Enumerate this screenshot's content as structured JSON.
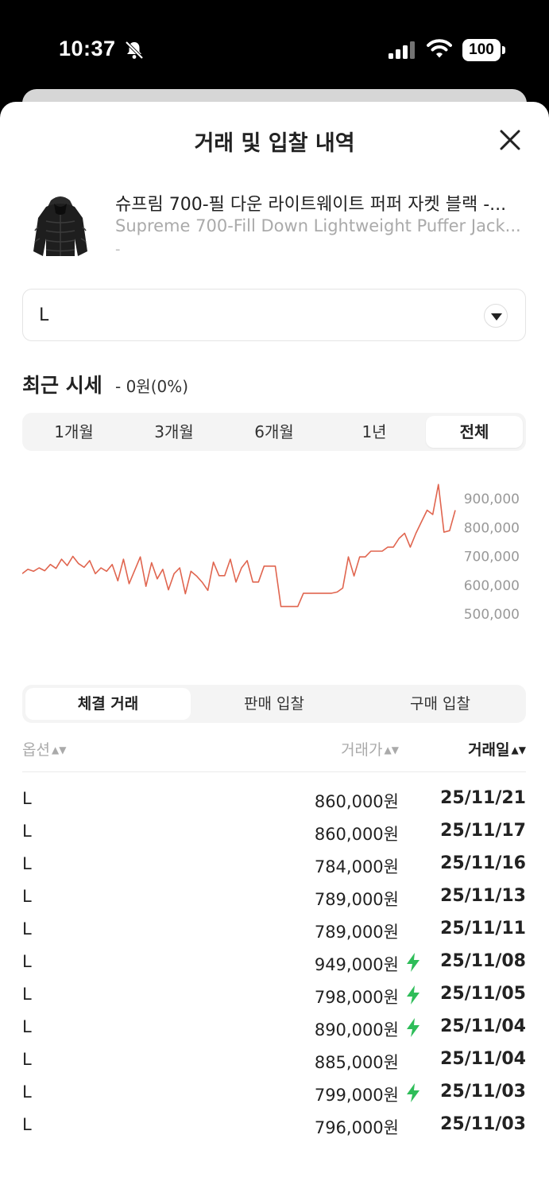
{
  "status": {
    "time": "10:37",
    "battery": "100"
  },
  "sheet": {
    "title": "거래 및 입찰 내역"
  },
  "product": {
    "name_ko": "슈프림 700-필 다운 라이트웨이트 퍼퍼 자켓 블랙 -...",
    "name_en": "Supreme 700-Fill Down Lightweight Puffer Jack...",
    "sub": "-"
  },
  "size_select": {
    "value": "L"
  },
  "price_section": {
    "heading": "최근 시세",
    "change": "- 0원(0%)"
  },
  "period_tabs": [
    {
      "label": "1개월"
    },
    {
      "label": "3개월"
    },
    {
      "label": "6개월"
    },
    {
      "label": "1년"
    },
    {
      "label": "전체",
      "active": true
    }
  ],
  "chart_data": {
    "type": "line",
    "color": "#e0654f",
    "yaxis_ticks": [
      "900,000",
      "800,000",
      "700,000",
      "600,000",
      "500,000"
    ],
    "ylim": [
      500000,
      900000
    ],
    "series": [
      {
        "values": [
          640000,
          655000,
          648000,
          660000,
          650000,
          672000,
          658000,
          690000,
          668000,
          700000,
          675000,
          662000,
          685000,
          640000,
          660000,
          648000,
          672000,
          615000,
          690000,
          605000,
          652000,
          698000,
          596000,
          678000,
          622000,
          655000,
          584000,
          640000,
          660000,
          570000,
          648000,
          632000,
          610000,
          582000,
          680000,
          633000,
          633000,
          690000,
          611000,
          660000,
          685000,
          611000,
          611000,
          666000,
          666000,
          666000,
          526000,
          526000,
          526000,
          526000,
          572000,
          572000,
          572000,
          572000,
          572000,
          572000,
          576000,
          590000,
          698000,
          632000,
          698000,
          698000,
          718000,
          718000,
          718000,
          732000,
          732000,
          762000,
          780000,
          732000,
          780000,
          820000,
          860000,
          845000,
          949000,
          784000,
          789000,
          860000
        ]
      }
    ]
  },
  "trade_tabs": [
    {
      "label": "체결 거래",
      "active": true
    },
    {
      "label": "판매 입찰"
    },
    {
      "label": "구매 입찰"
    }
  ],
  "table": {
    "headers": {
      "option": "옵션",
      "price": "거래가",
      "date": "거래일"
    },
    "sort_icon": "▲▼",
    "rows": [
      {
        "option": "L",
        "price": "860,000원",
        "fast": false,
        "date": "25/11/21"
      },
      {
        "option": "L",
        "price": "860,000원",
        "fast": false,
        "date": "25/11/17"
      },
      {
        "option": "L",
        "price": "784,000원",
        "fast": false,
        "date": "25/11/16"
      },
      {
        "option": "L",
        "price": "789,000원",
        "fast": false,
        "date": "25/11/13"
      },
      {
        "option": "L",
        "price": "789,000원",
        "fast": false,
        "date": "25/11/11"
      },
      {
        "option": "L",
        "price": "949,000원",
        "fast": true,
        "date": "25/11/08"
      },
      {
        "option": "L",
        "price": "798,000원",
        "fast": true,
        "date": "25/11/05"
      },
      {
        "option": "L",
        "price": "890,000원",
        "fast": true,
        "date": "25/11/04"
      },
      {
        "option": "L",
        "price": "885,000원",
        "fast": false,
        "date": "25/11/04"
      },
      {
        "option": "L",
        "price": "799,000원",
        "fast": true,
        "date": "25/11/03"
      },
      {
        "option": "L",
        "price": "796,000원",
        "fast": false,
        "date": "25/11/03"
      }
    ]
  },
  "icons": {
    "bolt_color": "#2ebd59"
  }
}
